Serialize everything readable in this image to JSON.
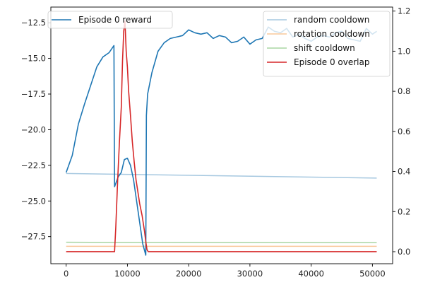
{
  "chart_data": {
    "type": "line",
    "title": "",
    "xlabel": "",
    "ylabel": "",
    "xlim": [
      -2500,
      53300
    ],
    "ylim_left": [
      -29.4,
      -11.4
    ],
    "ylim_right": [
      -0.06,
      1.22
    ],
    "x_ticks": [
      0,
      10000,
      20000,
      30000,
      40000,
      50000
    ],
    "y_left_ticks": [
      -27.5,
      -25.0,
      -22.5,
      -20.0,
      -17.5,
      -15.0,
      -12.5
    ],
    "y_right_ticks": [
      0.0,
      0.2,
      0.4,
      0.6,
      0.8,
      1.0,
      1.2
    ],
    "grid": false,
    "legends": [
      {
        "position": "upper-left",
        "entries": [
          "Episode 0 reward"
        ]
      },
      {
        "position": "upper-right",
        "entries": [
          "random cooldown",
          "rotation cooldown",
          "shift cooldown",
          "Episode 0 overlap"
        ]
      }
    ],
    "series": [
      {
        "name": "Episode 0 reward",
        "axis": "left",
        "color": "#1f77b4",
        "x": [
          0,
          1000,
          2000,
          3000,
          4000,
          5000,
          6000,
          7000,
          7800,
          7900,
          8500,
          9000,
          9500,
          10000,
          10500,
          11000,
          11500,
          12000,
          12500,
          13000,
          13100,
          13300,
          14000,
          15000,
          16000,
          17000,
          18000,
          19000,
          20000,
          21000,
          22000,
          23000,
          24000,
          25000,
          26000,
          27000,
          28000,
          29000,
          30000,
          31000,
          32000,
          33000,
          34000,
          35000,
          36000,
          37000,
          38000,
          39000,
          40000,
          41000,
          42000,
          43000,
          44000,
          45000,
          46000,
          47000,
          48000,
          49000,
          50000,
          50700
        ],
        "y": [
          -23.0,
          -21.8,
          -19.6,
          -18.2,
          -16.9,
          -15.6,
          -14.9,
          -14.6,
          -14.1,
          -24.0,
          -23.3,
          -23.0,
          -22.1,
          -22.0,
          -22.5,
          -23.5,
          -25.0,
          -26.5,
          -28.0,
          -28.8,
          -19.0,
          -17.5,
          -16.0,
          -14.5,
          -13.9,
          -13.6,
          -13.5,
          -13.4,
          -13.0,
          -13.2,
          -13.3,
          -13.2,
          -13.6,
          -13.4,
          -13.5,
          -13.9,
          -13.8,
          -13.5,
          -14.0,
          -13.7,
          -13.6,
          -12.8,
          -13.1,
          -13.2,
          -12.9,
          -13.5,
          -13.3,
          -13.6,
          -13.8,
          -13.5,
          -13.4,
          -13.5,
          -13.2,
          -13.1,
          -13.6,
          -13.7,
          -13.8,
          -12.9,
          -13.3,
          -13.1
        ]
      },
      {
        "name": "random cooldown",
        "axis": "right",
        "color": "#a6c8e0",
        "x": [
          0,
          50700
        ],
        "y": [
          0.39,
          0.367
        ]
      },
      {
        "name": "rotation cooldown",
        "axis": "right",
        "color": "#f9c89a",
        "x": [
          0,
          50700
        ],
        "y": [
          0.027,
          0.027
        ]
      },
      {
        "name": "shift cooldown",
        "axis": "right",
        "color": "#a8d5a2",
        "x": [
          0,
          50700
        ],
        "y": [
          0.047,
          0.045
        ]
      },
      {
        "name": "Episode 0 overlap",
        "axis": "right",
        "color": "#d62728",
        "x": [
          0,
          7900,
          8100,
          8400,
          8700,
          9000,
          9200,
          9400,
          9600,
          9800,
          10000,
          10200,
          10500,
          10800,
          11100,
          11400,
          11700,
          12000,
          12400,
          12800,
          13000,
          13200,
          13400,
          50700
        ],
        "y": [
          0.0,
          0.0,
          0.12,
          0.35,
          0.55,
          0.72,
          0.95,
          1.1,
          1.15,
          1.0,
          0.92,
          0.8,
          0.68,
          0.55,
          0.45,
          0.36,
          0.3,
          0.24,
          0.18,
          0.1,
          0.05,
          0.01,
          0.0,
          0.0
        ]
      }
    ]
  }
}
